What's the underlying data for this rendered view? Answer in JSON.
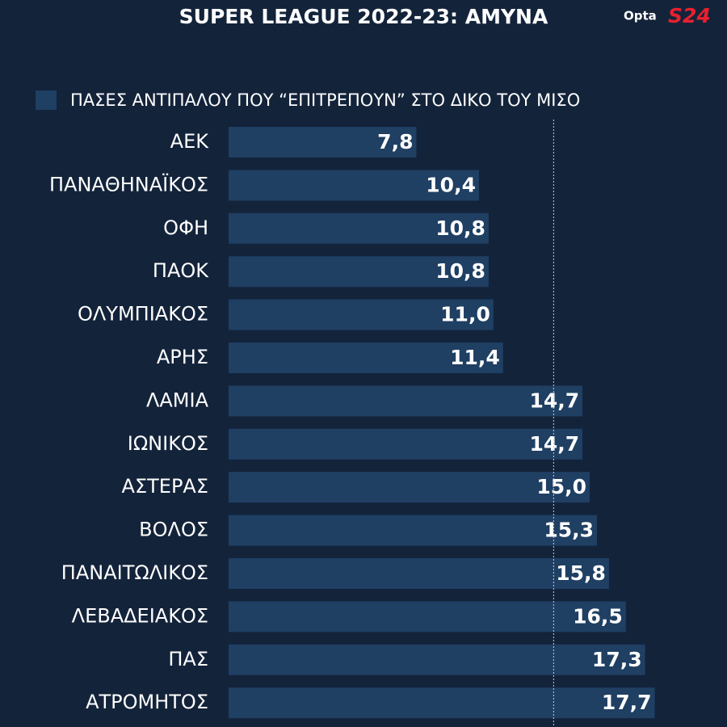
{
  "chart_data": {
    "type": "barh",
    "title": "SUPER LEAGUE 2022-23: ΑΜΥΝΑ",
    "logos": [
      "Opta",
      "S24"
    ],
    "categories": [
      "ΑΕΚ",
      "ΠΑΝΑΘΗΝΑΪΚΟΣ",
      "ΟΦΗ",
      "ΠΑΟΚ",
      "ΟΛΥΜΠΙΑΚΟΣ",
      "ΑΡΗΣ",
      "ΛΑΜΙΑ",
      "ΙΩΝΙΚΟΣ",
      "ΑΣΤΕΡΑΣ",
      "ΒΟΛΟΣ",
      "ΠΑΝΑΙΤΩΛΙΚΟΣ",
      "ΛΕΒΑΔΕΙΑΚΟΣ",
      "ΠΑΣ",
      "ΑΤΡΟΜΗΤΟΣ"
    ],
    "series": [
      {
        "name": "ΠΑΣΕΣ ΑΝΤΙΠΑΛΟΥ ΠΟΥ “ΕΠΙΤΡΕΠΟΥΝ” ΣΤΟ ΔΙΚΟ ΤΟΥ ΜΙΣΟ",
        "color": "#1f3f63",
        "values": [
          7.8,
          10.4,
          10.8,
          10.8,
          11.0,
          11.4,
          14.7,
          14.7,
          15.0,
          15.3,
          15.8,
          16.5,
          17.3,
          17.7
        ],
        "value_labels": [
          "7,8",
          "10,4",
          "10,8",
          "10,8",
          "11,0",
          "11,4",
          "14,7",
          "14,7",
          "15,0",
          "15,3",
          "15,8",
          "16,5",
          "17,3",
          "17,7"
        ]
      }
    ],
    "xlim": [
      0,
      20.5
    ],
    "reference_line": 13.5
  }
}
